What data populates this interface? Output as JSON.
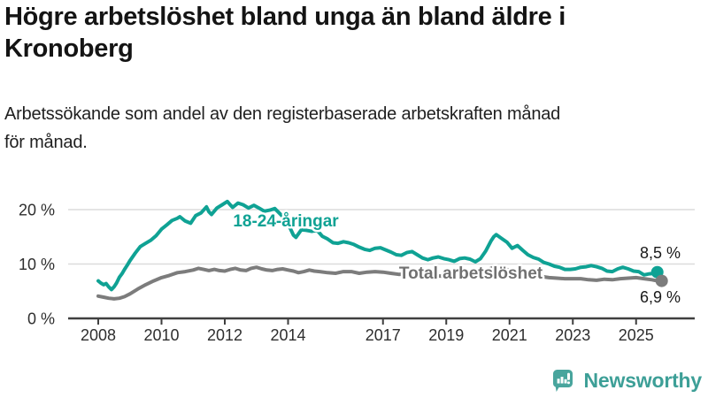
{
  "header": {
    "title_line1": "Högre arbetslöshet bland unga än bland äldre i",
    "title_line2": "Kronoberg",
    "subtitle_line1": "Arbetssökande som andel av den registerbaserade arbetskraften månad",
    "subtitle_line2": "för månad."
  },
  "branding": {
    "wordmark": "Newsworthy",
    "logo_icon": "speech-bubble-bar-chart",
    "logo_color": "#48a59d",
    "wordmark_color": "#3d9f97"
  },
  "colors": {
    "youth_line": "#0fa294",
    "total_line": "#7c7c7c",
    "total_label": "#717171",
    "gridline": "#dcdcdc",
    "axis": "#3f3f3f",
    "axis_text": "#2e2e2e",
    "annotation_text": "#1a1a1a",
    "background": "#ffffff"
  },
  "chart_data": {
    "type": "line",
    "title": "Högre arbetslöshet bland unga än bland äldre i Kronoberg",
    "xlabel": "",
    "ylabel": "Arbetssökande som andel av den registerbaserade arbetskraften",
    "unit": "%",
    "grid": "horizontal",
    "legend_position": "inline-labels",
    "x_range": [
      2007.9,
      2026.2
    ],
    "ylim": [
      0,
      22
    ],
    "x_ticks": [
      {
        "value": 2008,
        "label": "2008"
      },
      {
        "value": 2010,
        "label": "2010"
      },
      {
        "value": 2012,
        "label": "2012"
      },
      {
        "value": 2014,
        "label": "2014"
      },
      {
        "value": 2017,
        "label": "2017"
      },
      {
        "value": 2019,
        "label": "2019"
      },
      {
        "value": 2021,
        "label": "2021"
      },
      {
        "value": 2023,
        "label": "2023"
      },
      {
        "value": 2025,
        "label": "2025"
      }
    ],
    "y_ticks": [
      {
        "value": 0,
        "label": "0 %"
      },
      {
        "value": 10,
        "label": "10 %"
      },
      {
        "value": 20,
        "label": "20 %"
      }
    ],
    "series": [
      {
        "name": "18-24-åringar",
        "color": "#0fa294",
        "end_value": 8.5,
        "end_label": "8,5 %",
        "points": [
          [
            2008.0,
            6.9
          ],
          [
            2008.08,
            6.5
          ],
          [
            2008.17,
            6.2
          ],
          [
            2008.25,
            6.4
          ],
          [
            2008.33,
            5.8
          ],
          [
            2008.42,
            5.3
          ],
          [
            2008.5,
            5.8
          ],
          [
            2008.58,
            6.5
          ],
          [
            2008.67,
            7.6
          ],
          [
            2008.75,
            8.2
          ],
          [
            2008.83,
            9.0
          ],
          [
            2008.92,
            9.8
          ],
          [
            2009.0,
            10.6
          ],
          [
            2009.17,
            12.0
          ],
          [
            2009.33,
            13.2
          ],
          [
            2009.5,
            13.8
          ],
          [
            2009.67,
            14.4
          ],
          [
            2009.83,
            15.2
          ],
          [
            2010.0,
            16.4
          ],
          [
            2010.17,
            17.2
          ],
          [
            2010.33,
            18.0
          ],
          [
            2010.5,
            18.4
          ],
          [
            2010.58,
            18.7
          ],
          [
            2010.75,
            17.9
          ],
          [
            2010.92,
            17.5
          ],
          [
            2011.08,
            18.9
          ],
          [
            2011.25,
            19.4
          ],
          [
            2011.42,
            20.5
          ],
          [
            2011.5,
            19.6
          ],
          [
            2011.58,
            19.1
          ],
          [
            2011.75,
            20.3
          ],
          [
            2011.92,
            20.9
          ],
          [
            2012.08,
            21.5
          ],
          [
            2012.17,
            20.9
          ],
          [
            2012.25,
            20.4
          ],
          [
            2012.42,
            21.2
          ],
          [
            2012.58,
            20.9
          ],
          [
            2012.75,
            20.3
          ],
          [
            2012.92,
            20.8
          ],
          [
            2013.08,
            20.3
          ],
          [
            2013.25,
            19.7
          ],
          [
            2013.42,
            19.9
          ],
          [
            2013.58,
            20.2
          ],
          [
            2013.75,
            19.2
          ],
          [
            2013.92,
            18.2
          ],
          [
            2014.08,
            16.4
          ],
          [
            2014.17,
            15.3
          ],
          [
            2014.25,
            14.9
          ],
          [
            2014.42,
            16.3
          ],
          [
            2014.58,
            16.2
          ],
          [
            2014.75,
            16.0
          ],
          [
            2014.92,
            16.2
          ],
          [
            2015.08,
            15.1
          ],
          [
            2015.25,
            14.6
          ],
          [
            2015.42,
            13.9
          ],
          [
            2015.58,
            13.8
          ],
          [
            2015.75,
            14.1
          ],
          [
            2015.92,
            13.9
          ],
          [
            2016.08,
            13.6
          ],
          [
            2016.25,
            13.1
          ],
          [
            2016.42,
            12.7
          ],
          [
            2016.58,
            12.5
          ],
          [
            2016.75,
            12.9
          ],
          [
            2016.92,
            13.0
          ],
          [
            2017.08,
            12.6
          ],
          [
            2017.25,
            12.2
          ],
          [
            2017.42,
            11.7
          ],
          [
            2017.58,
            11.6
          ],
          [
            2017.75,
            12.1
          ],
          [
            2017.92,
            12.3
          ],
          [
            2018.08,
            11.7
          ],
          [
            2018.25,
            11.1
          ],
          [
            2018.42,
            10.8
          ],
          [
            2018.58,
            11.1
          ],
          [
            2018.75,
            11.3
          ],
          [
            2018.92,
            11.0
          ],
          [
            2019.08,
            10.8
          ],
          [
            2019.25,
            10.5
          ],
          [
            2019.42,
            11.0
          ],
          [
            2019.58,
            11.1
          ],
          [
            2019.75,
            10.9
          ],
          [
            2019.92,
            10.4
          ],
          [
            2020.08,
            11.0
          ],
          [
            2020.25,
            12.4
          ],
          [
            2020.42,
            14.3
          ],
          [
            2020.5,
            15.0
          ],
          [
            2020.58,
            15.4
          ],
          [
            2020.75,
            14.7
          ],
          [
            2020.92,
            14.0
          ],
          [
            2021.08,
            12.9
          ],
          [
            2021.25,
            13.4
          ],
          [
            2021.42,
            12.5
          ],
          [
            2021.58,
            11.7
          ],
          [
            2021.75,
            11.2
          ],
          [
            2021.92,
            10.9
          ],
          [
            2022.08,
            10.3
          ],
          [
            2022.25,
            10.0
          ],
          [
            2022.42,
            9.6
          ],
          [
            2022.58,
            9.4
          ],
          [
            2022.75,
            9.0
          ],
          [
            2022.92,
            9.0
          ],
          [
            2023.08,
            9.1
          ],
          [
            2023.25,
            9.4
          ],
          [
            2023.42,
            9.5
          ],
          [
            2023.58,
            9.7
          ],
          [
            2023.75,
            9.5
          ],
          [
            2023.92,
            9.2
          ],
          [
            2024.08,
            8.7
          ],
          [
            2024.25,
            8.6
          ],
          [
            2024.42,
            9.1
          ],
          [
            2024.58,
            9.4
          ],
          [
            2024.75,
            9.1
          ],
          [
            2024.92,
            8.7
          ],
          [
            2025.08,
            8.6
          ],
          [
            2025.25,
            8.0
          ],
          [
            2025.42,
            8.2
          ],
          [
            2025.58,
            8.3
          ],
          [
            2025.67,
            8.5
          ]
        ]
      },
      {
        "name": "Total arbetslöshet",
        "color": "#7c7c7c",
        "end_value": 6.9,
        "end_label": "6,9 %",
        "points": [
          [
            2008.0,
            4.1
          ],
          [
            2008.17,
            3.9
          ],
          [
            2008.33,
            3.7
          ],
          [
            2008.5,
            3.6
          ],
          [
            2008.67,
            3.7
          ],
          [
            2008.83,
            4.0
          ],
          [
            2009.0,
            4.5
          ],
          [
            2009.25,
            5.4
          ],
          [
            2009.5,
            6.2
          ],
          [
            2009.75,
            6.9
          ],
          [
            2010.0,
            7.5
          ],
          [
            2010.25,
            7.9
          ],
          [
            2010.5,
            8.4
          ],
          [
            2010.75,
            8.6
          ],
          [
            2011.0,
            8.9
          ],
          [
            2011.17,
            9.2
          ],
          [
            2011.33,
            9.0
          ],
          [
            2011.5,
            8.8
          ],
          [
            2011.67,
            9.0
          ],
          [
            2011.83,
            8.8
          ],
          [
            2012.0,
            8.7
          ],
          [
            2012.17,
            9.0
          ],
          [
            2012.33,
            9.2
          ],
          [
            2012.5,
            8.9
          ],
          [
            2012.67,
            8.8
          ],
          [
            2012.83,
            9.2
          ],
          [
            2013.0,
            9.4
          ],
          [
            2013.17,
            9.1
          ],
          [
            2013.33,
            8.9
          ],
          [
            2013.5,
            8.8
          ],
          [
            2013.67,
            9.0
          ],
          [
            2013.83,
            9.1
          ],
          [
            2014.0,
            8.9
          ],
          [
            2014.17,
            8.7
          ],
          [
            2014.33,
            8.4
          ],
          [
            2014.5,
            8.6
          ],
          [
            2014.67,
            8.9
          ],
          [
            2014.83,
            8.7
          ],
          [
            2015.0,
            8.6
          ],
          [
            2015.25,
            8.4
          ],
          [
            2015.5,
            8.3
          ],
          [
            2015.75,
            8.6
          ],
          [
            2016.0,
            8.6
          ],
          [
            2016.25,
            8.3
          ],
          [
            2016.5,
            8.5
          ],
          [
            2016.75,
            8.6
          ],
          [
            2017.0,
            8.5
          ],
          [
            2017.25,
            8.3
          ],
          [
            2017.5,
            8.1
          ],
          [
            2017.75,
            8.2
          ],
          [
            2018.0,
            8.0
          ],
          [
            2018.25,
            7.8
          ],
          [
            2018.5,
            7.7
          ],
          [
            2018.75,
            7.8
          ],
          [
            2019.0,
            7.7
          ],
          [
            2019.25,
            7.6
          ],
          [
            2019.5,
            7.8
          ],
          [
            2019.75,
            7.9
          ],
          [
            2020.0,
            8.0
          ],
          [
            2020.25,
            8.8
          ],
          [
            2020.5,
            9.4
          ],
          [
            2020.75,
            9.2
          ],
          [
            2021.0,
            8.9
          ],
          [
            2021.25,
            8.7
          ],
          [
            2021.5,
            8.3
          ],
          [
            2021.75,
            8.0
          ],
          [
            2022.0,
            7.7
          ],
          [
            2022.25,
            7.5
          ],
          [
            2022.5,
            7.4
          ],
          [
            2022.75,
            7.3
          ],
          [
            2023.0,
            7.3
          ],
          [
            2023.25,
            7.3
          ],
          [
            2023.5,
            7.1
          ],
          [
            2023.75,
            7.0
          ],
          [
            2024.0,
            7.2
          ],
          [
            2024.25,
            7.1
          ],
          [
            2024.5,
            7.3
          ],
          [
            2024.75,
            7.4
          ],
          [
            2025.0,
            7.5
          ],
          [
            2025.25,
            7.3
          ],
          [
            2025.5,
            7.1
          ],
          [
            2025.67,
            6.9
          ]
        ]
      }
    ]
  }
}
